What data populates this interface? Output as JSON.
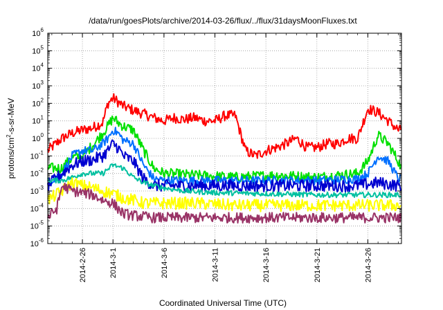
{
  "chart_data": {
    "type": "line",
    "title": "/data/run/goesPlots/archive/2014-03-26/flux/../flux/31daysMoonFluxes.txt",
    "xlabel": "Coordinated Universal Time (UTC)",
    "ylabel": {
      "pre": "protons/cm",
      "sup": "2",
      "post": "-s-sr-MeV"
    },
    "y_scale": "log",
    "ylim_exp": [
      -6,
      6
    ],
    "ytick_base": "10",
    "y_tick_exponents": [
      "6",
      "5",
      "4",
      "3",
      "2",
      "1",
      "0",
      "-1",
      "-2",
      "-3",
      "-4",
      "-5",
      "-6"
    ],
    "x_range_days": [
      -6.4,
      28.3
    ],
    "x_ticks": [
      {
        "label": "2014-2-26",
        "day": -3
      },
      {
        "label": "2014-3-1",
        "day": 0
      },
      {
        "label": "2014-3-6",
        "day": 5
      },
      {
        "label": "2014-3-11",
        "day": 10
      },
      {
        "label": "2014-3-16",
        "day": 15
      },
      {
        "label": "2014-3-21",
        "day": 20
      },
      {
        "label": "2014-3-26",
        "day": 25
      }
    ],
    "grid": true,
    "series": [
      {
        "color": "#ff0000",
        "noise": 0.3,
        "points": [
          [
            -6.4,
            0.2
          ],
          [
            -5,
            1
          ],
          [
            -4,
            2
          ],
          [
            -3,
            3
          ],
          [
            -2,
            4
          ],
          [
            -1,
            8
          ],
          [
            -0.5,
            100
          ],
          [
            0,
            200
          ],
          [
            0.5,
            120
          ],
          [
            1,
            70
          ],
          [
            2,
            40
          ],
          [
            3,
            25
          ],
          [
            4,
            15
          ],
          [
            5,
            10
          ],
          [
            6,
            15
          ],
          [
            7,
            12
          ],
          [
            8,
            15
          ],
          [
            9,
            10
          ],
          [
            10,
            10
          ],
          [
            11,
            20
          ],
          [
            12,
            20
          ],
          [
            13,
            0.2
          ],
          [
            14,
            0.1
          ],
          [
            15,
            0.2
          ],
          [
            16,
            0.3
          ],
          [
            17,
            0.5
          ],
          [
            18,
            1
          ],
          [
            19,
            0.3
          ],
          [
            20,
            0.3
          ],
          [
            21,
            0.5
          ],
          [
            22,
            0.5
          ],
          [
            23,
            1
          ],
          [
            24,
            1
          ],
          [
            25,
            50
          ],
          [
            26,
            30
          ],
          [
            27,
            10
          ],
          [
            28,
            3
          ],
          [
            28.3,
            3
          ]
        ]
      },
      {
        "color": "#00e000",
        "noise": 0.3,
        "points": [
          [
            -6.4,
            0.02
          ],
          [
            -5,
            0.02
          ],
          [
            -4,
            0.08
          ],
          [
            -3,
            0.1
          ],
          [
            -2,
            0.4
          ],
          [
            -1,
            2
          ],
          [
            -0.5,
            5
          ],
          [
            0,
            15
          ],
          [
            0.5,
            8
          ],
          [
            1,
            5
          ],
          [
            2,
            3
          ],
          [
            3,
            0.2
          ],
          [
            4,
            0.02
          ],
          [
            5,
            0.01
          ],
          [
            8,
            0.008
          ],
          [
            12,
            0.006
          ],
          [
            16,
            0.008
          ],
          [
            20,
            0.006
          ],
          [
            24,
            0.01
          ],
          [
            25,
            0.05
          ],
          [
            26,
            1.5
          ],
          [
            27,
            0.5
          ],
          [
            28,
            0.05
          ],
          [
            28.3,
            0.02
          ]
        ]
      },
      {
        "color": "#0070ff",
        "noise": 0.25,
        "points": [
          [
            -6.4,
            0.003
          ],
          [
            -5,
            0.01
          ],
          [
            -4,
            0.1
          ],
          [
            -3,
            0.2
          ],
          [
            -2,
            0.2
          ],
          [
            -1,
            0.5
          ],
          [
            -0.5,
            1
          ],
          [
            0,
            3
          ],
          [
            0.5,
            2
          ],
          [
            1,
            0.8
          ],
          [
            2,
            0.5
          ],
          [
            3,
            0.03
          ],
          [
            4,
            0.005
          ],
          [
            5,
            0.004
          ],
          [
            8,
            0.004
          ],
          [
            12,
            0.004
          ],
          [
            16,
            0.004
          ],
          [
            20,
            0.004
          ],
          [
            24,
            0.005
          ],
          [
            25,
            0.01
          ],
          [
            26,
            0.1
          ],
          [
            27,
            0.05
          ],
          [
            28,
            0.005
          ],
          [
            28.3,
            0.005
          ]
        ]
      },
      {
        "color": "#0000d0",
        "noise": 0.35,
        "points": [
          [
            -6.4,
            0.002
          ],
          [
            -5,
            0.01
          ],
          [
            -4,
            0.03
          ],
          [
            -3,
            0.05
          ],
          [
            -2,
            0.06
          ],
          [
            -1,
            0.1
          ],
          [
            -0.5,
            0.2
          ],
          [
            0,
            0.5
          ],
          [
            0.5,
            0.3
          ],
          [
            1,
            0.1
          ],
          [
            2,
            0.05
          ],
          [
            3,
            0.005
          ],
          [
            4,
            0.002
          ],
          [
            5,
            0.002
          ],
          [
            8,
            0.002
          ],
          [
            12,
            0.002
          ],
          [
            16,
            0.002
          ],
          [
            20,
            0.002
          ],
          [
            24,
            0.002
          ],
          [
            26,
            0.003
          ],
          [
            28,
            0.002
          ],
          [
            28.3,
            0.002
          ]
        ]
      },
      {
        "color": "#00c0a0",
        "noise": 0.15,
        "points": [
          [
            -6.4,
            0.004
          ],
          [
            -5,
            0.004
          ],
          [
            -4,
            0.006
          ],
          [
            -3,
            0.01
          ],
          [
            -2,
            0.01
          ],
          [
            -1,
            0.01
          ],
          [
            0,
            0.03
          ],
          [
            1,
            0.02
          ],
          [
            2,
            0.006
          ],
          [
            3,
            0.003
          ],
          [
            4,
            0.002
          ],
          [
            5,
            0.0015
          ],
          [
            7,
            0.001
          ],
          [
            10,
            0.0008
          ],
          [
            15,
            0.0007
          ],
          [
            20,
            0.0006
          ],
          [
            25,
            0.0006
          ],
          [
            28.3,
            0.0006
          ]
        ]
      },
      {
        "color": "#ffff00",
        "noise": 0.35,
        "points": [
          [
            -6.4,
            0.0003
          ],
          [
            -5,
            0.001
          ],
          [
            -4,
            0.003
          ],
          [
            -3,
            0.002
          ],
          [
            -2,
            0.0015
          ],
          [
            -1,
            0.001
          ],
          [
            0,
            0.0007
          ],
          [
            1,
            0.0004
          ],
          [
            2,
            0.0003
          ],
          [
            3,
            0.0002
          ],
          [
            4,
            0.0002
          ],
          [
            8,
            0.0002
          ],
          [
            12,
            0.00015
          ],
          [
            16,
            0.00015
          ],
          [
            20,
            0.00015
          ],
          [
            24,
            0.00015
          ],
          [
            28.3,
            0.00015
          ]
        ]
      },
      {
        "color": "#993366",
        "noise": 0.3,
        "points": [
          [
            -6.4,
            3e-05
          ],
          [
            -5.5,
            0.0001
          ],
          [
            -5,
            0.002
          ],
          [
            -4,
            0.001
          ],
          [
            -3,
            0.0008
          ],
          [
            -2,
            0.0006
          ],
          [
            -1,
            0.0003
          ],
          [
            0,
            0.0002
          ],
          [
            0.5,
            0.0001
          ],
          [
            1,
            5e-05
          ],
          [
            2,
            4e-05
          ],
          [
            4,
            3e-05
          ],
          [
            8,
            3e-05
          ],
          [
            12,
            3e-05
          ],
          [
            16,
            3e-05
          ],
          [
            20,
            3e-05
          ],
          [
            24,
            3e-05
          ],
          [
            28.3,
            3e-05
          ]
        ]
      }
    ]
  }
}
